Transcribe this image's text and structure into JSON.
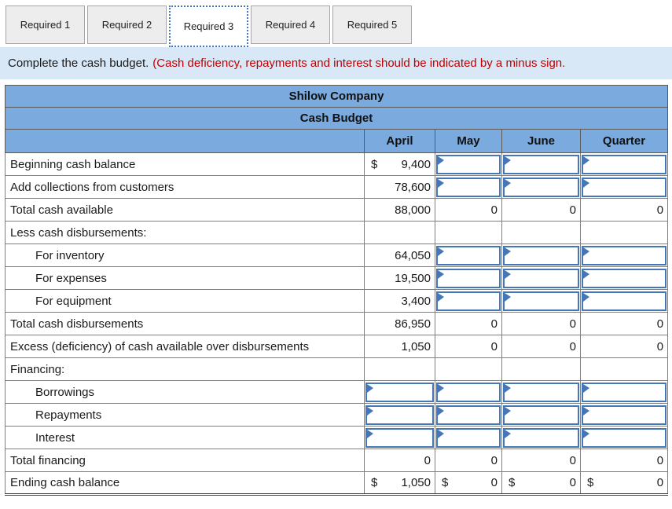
{
  "tabs": [
    {
      "label": "Required 1",
      "active": false
    },
    {
      "label": "Required 2",
      "active": false
    },
    {
      "label": "Required 3",
      "active": true
    },
    {
      "label": "Required 4",
      "active": false
    },
    {
      "label": "Required 5",
      "active": false
    }
  ],
  "instruction": {
    "normal": "Complete the cash budget.",
    "red": "(Cash deficiency, repayments and interest should be indicated by a minus sign."
  },
  "table": {
    "title": "Shilow Company",
    "subtitle": "Cash Budget",
    "currency_symbol": "$",
    "columns": [
      "April",
      "May",
      "June",
      "Quarter"
    ],
    "rows": [
      {
        "label": "Beginning cash balance",
        "indent": false,
        "cells": [
          {
            "t": "value",
            "dollar": true,
            "text": "9,400"
          },
          {
            "t": "input"
          },
          {
            "t": "input"
          },
          {
            "t": "input"
          }
        ]
      },
      {
        "label": "Add collections from customers",
        "indent": false,
        "cells": [
          {
            "t": "value",
            "text": "78,600"
          },
          {
            "t": "input"
          },
          {
            "t": "input"
          },
          {
            "t": "input"
          }
        ]
      },
      {
        "label": "Total cash available",
        "indent": false,
        "cells": [
          {
            "t": "value",
            "text": "88,000"
          },
          {
            "t": "value",
            "text": "0"
          },
          {
            "t": "value",
            "text": "0"
          },
          {
            "t": "value",
            "text": "0"
          }
        ]
      },
      {
        "label": "Less cash disbursements:",
        "indent": false,
        "cells": [
          {
            "t": "empty"
          },
          {
            "t": "empty"
          },
          {
            "t": "empty"
          },
          {
            "t": "empty"
          }
        ]
      },
      {
        "label": "For inventory",
        "indent": true,
        "cells": [
          {
            "t": "value",
            "text": "64,050"
          },
          {
            "t": "input"
          },
          {
            "t": "input"
          },
          {
            "t": "input"
          }
        ]
      },
      {
        "label": "For expenses",
        "indent": true,
        "cells": [
          {
            "t": "value",
            "text": "19,500"
          },
          {
            "t": "input"
          },
          {
            "t": "input"
          },
          {
            "t": "input"
          }
        ]
      },
      {
        "label": "For equipment",
        "indent": true,
        "cells": [
          {
            "t": "value",
            "text": "3,400"
          },
          {
            "t": "input"
          },
          {
            "t": "input"
          },
          {
            "t": "input"
          }
        ]
      },
      {
        "label": "Total cash disbursements",
        "indent": false,
        "cells": [
          {
            "t": "value",
            "text": "86,950"
          },
          {
            "t": "value",
            "text": "0"
          },
          {
            "t": "value",
            "text": "0"
          },
          {
            "t": "value",
            "text": "0"
          }
        ]
      },
      {
        "label": "Excess (deficiency) of cash available over disbursements",
        "indent": false,
        "cells": [
          {
            "t": "value",
            "text": "1,050"
          },
          {
            "t": "value",
            "text": "0"
          },
          {
            "t": "value",
            "text": "0"
          },
          {
            "t": "value",
            "text": "0"
          }
        ]
      },
      {
        "label": "Financing:",
        "indent": false,
        "cells": [
          {
            "t": "empty"
          },
          {
            "t": "empty"
          },
          {
            "t": "empty"
          },
          {
            "t": "empty"
          }
        ]
      },
      {
        "label": "Borrowings",
        "indent": true,
        "cells": [
          {
            "t": "input"
          },
          {
            "t": "input"
          },
          {
            "t": "input"
          },
          {
            "t": "input"
          }
        ]
      },
      {
        "label": "Repayments",
        "indent": true,
        "cells": [
          {
            "t": "input"
          },
          {
            "t": "input"
          },
          {
            "t": "input"
          },
          {
            "t": "input"
          }
        ]
      },
      {
        "label": "Interest",
        "indent": true,
        "cells": [
          {
            "t": "input"
          },
          {
            "t": "input"
          },
          {
            "t": "input"
          },
          {
            "t": "input"
          }
        ]
      },
      {
        "label": "Total financing",
        "indent": false,
        "cells": [
          {
            "t": "value",
            "text": "0"
          },
          {
            "t": "value",
            "text": "0"
          },
          {
            "t": "value",
            "text": "0"
          },
          {
            "t": "value",
            "text": "0"
          }
        ]
      },
      {
        "label": "Ending cash balance",
        "indent": false,
        "cells": [
          {
            "t": "value",
            "dollar": true,
            "text": "1,050"
          },
          {
            "t": "value",
            "dollar": true,
            "text": "0"
          },
          {
            "t": "value",
            "dollar": true,
            "text": "0"
          },
          {
            "t": "value",
            "dollar": true,
            "text": "0"
          }
        ]
      }
    ]
  },
  "colors": {
    "header_blue": "#7aaade",
    "input_border_blue": "#4576b7",
    "instruction_bg": "#d9e8f6",
    "instruction_red": "#c00000",
    "tab_bg": "#ededed",
    "active_tab_border_blue": "#4576b7"
  }
}
